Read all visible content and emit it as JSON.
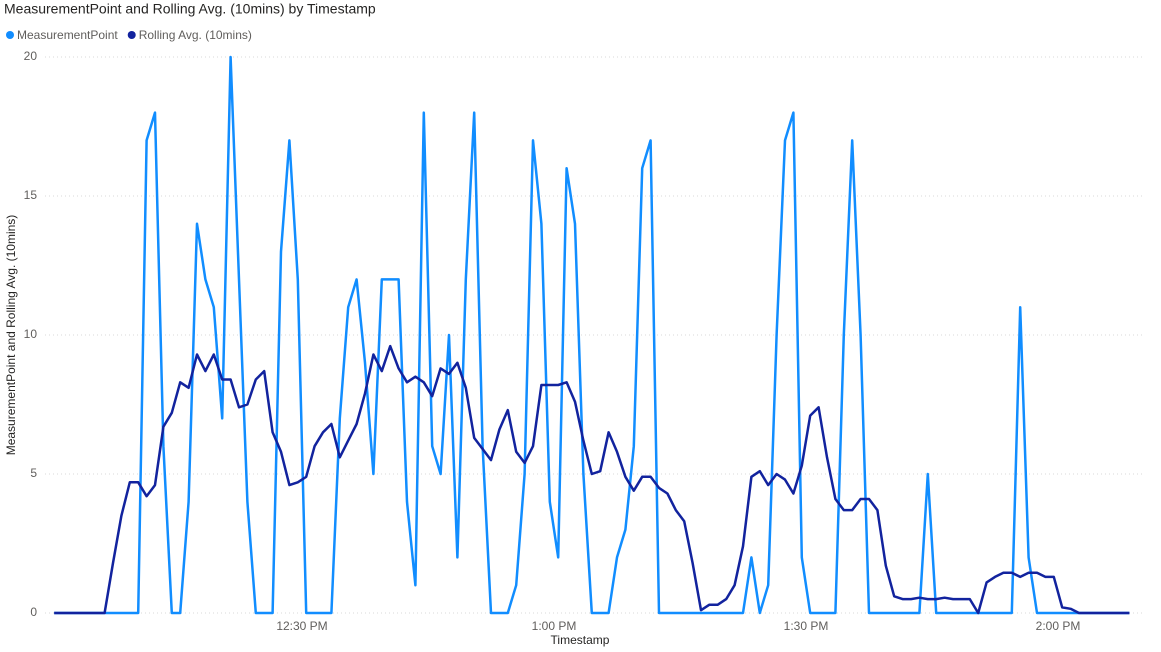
{
  "chart_data": {
    "type": "line",
    "title": "MeasurementPoint and Rolling Avg. (10mins) by Timestamp",
    "x_label": "Timestamp",
    "y_label": "MeasurementPoint and Rolling Avg. (10mins)",
    "x": [
      0.5,
      1.5,
      2.5,
      3.5,
      4.5,
      5.5,
      6.5,
      7.5,
      8.5,
      9.5,
      10.5,
      11.5,
      12.5,
      13.5,
      14.5,
      15.5,
      16.5,
      17.5,
      18.5,
      19.5,
      20.5,
      21.5,
      22.5,
      23.5,
      24.5,
      25.5,
      26.5,
      27.5,
      28.5,
      29.5,
      30.5,
      31.5,
      32.5,
      33.5,
      34.5,
      35.5,
      36.5,
      37.5,
      38.5,
      39.5,
      40.5,
      41.5,
      42.5,
      43.5,
      44.5,
      45.5,
      46.5,
      47.5,
      48.5,
      49.5,
      50.5,
      51.5,
      52.5,
      53.5,
      54.5,
      55.5,
      56.5,
      57.5,
      58.5,
      59.5,
      60.5,
      61.5,
      62.5,
      63.5,
      64.5,
      65.5,
      66.5,
      67.5,
      68.5,
      69.5,
      70.5,
      71.5,
      72.5,
      73.5,
      74.5,
      75.5,
      76.5,
      77.5,
      78.5,
      79.5,
      80.5,
      81.5,
      82.5,
      83.5,
      84.5,
      85.5,
      86.5,
      87.5,
      88.5,
      89.5,
      90.5,
      91.5,
      92.5,
      93.5,
      94.5,
      95.5,
      96.5,
      97.5,
      98.5,
      99.5,
      100.5,
      101.5,
      102.5,
      103.5,
      104.5,
      105.5,
      106.5,
      107.5,
      108.5,
      109.5,
      110.5,
      111.5,
      112.5,
      113.5,
      114.5,
      115.5,
      116.5,
      117.5,
      118.5,
      119.5,
      120.5,
      121.5,
      122.5,
      123.5,
      124.5,
      125.5,
      126.5,
      127.5,
      128.5
    ],
    "series": [
      {
        "name": "MeasurementPoint",
        "color": "#118dff",
        "values": [
          0,
          0,
          0,
          0,
          0,
          0,
          0,
          0,
          0,
          0,
          0,
          17,
          18,
          6,
          0,
          0,
          4,
          14,
          12,
          11,
          7,
          20,
          12,
          4,
          0,
          0,
          0,
          13,
          17,
          12,
          0,
          0,
          0,
          0,
          7,
          11,
          12,
          9,
          5,
          12,
          12,
          12,
          4,
          1,
          18,
          6,
          5,
          10,
          2,
          12,
          18,
          6,
          0,
          0,
          0,
          1,
          5,
          17,
          14,
          4,
          2,
          16,
          14,
          5,
          0,
          0,
          0,
          2,
          3,
          6,
          16,
          17,
          0,
          0,
          0,
          0,
          0,
          0,
          0,
          0,
          0,
          0,
          0,
          2,
          0,
          1,
          10,
          17,
          18,
          2,
          0,
          0,
          0,
          0,
          10,
          17,
          10,
          0,
          0,
          0,
          0,
          0,
          0,
          0,
          5,
          0,
          0,
          0,
          0,
          0,
          0,
          0,
          0,
          0,
          0,
          11,
          2,
          0,
          0,
          0,
          0,
          0,
          0,
          0,
          0,
          0,
          0,
          0,
          0
        ]
      },
      {
        "name": "Rolling Avg. (10mins)",
        "color": "#12239e",
        "values": [
          0,
          0,
          0,
          0,
          0,
          0,
          0,
          1.8,
          3.5,
          4.7,
          4.7,
          4.2,
          4.6,
          6.7,
          7.2,
          8.3,
          8.1,
          9.3,
          8.7,
          9.3,
          8.4,
          8.4,
          7.4,
          7.5,
          8.4,
          8.7,
          6.5,
          5.8,
          4.6,
          4.7,
          4.9,
          6.0,
          6.5,
          6.8,
          5.6,
          6.2,
          6.8,
          7.9,
          9.3,
          8.7,
          9.6,
          8.8,
          8.3,
          8.5,
          8.3,
          7.8,
          8.8,
          8.6,
          9.0,
          8.1,
          6.3,
          5.9,
          5.5,
          6.6,
          7.3,
          5.8,
          5.4,
          6.0,
          8.2,
          8.2,
          8.2,
          8.3,
          7.6,
          6.2,
          5.0,
          5.1,
          6.5,
          5.8,
          4.9,
          4.4,
          4.9,
          4.9,
          4.5,
          4.3,
          3.7,
          3.3,
          1.8,
          0.1,
          0.3,
          0.3,
          0.5,
          1.0,
          2.4,
          4.9,
          5.1,
          4.6,
          5.0,
          4.8,
          4.3,
          5.3,
          7.1,
          7.4,
          5.6,
          4.1,
          3.7,
          3.7,
          4.1,
          4.1,
          3.7,
          1.7,
          0.6,
          0.5,
          0.5,
          0.55,
          0.5,
          0.5,
          0.55,
          0.5,
          0.5,
          0.5,
          0,
          1.1,
          1.3,
          1.45,
          1.45,
          1.3,
          1.45,
          1.45,
          1.3,
          1.3,
          0.2,
          0.15,
          0,
          0,
          0,
          0,
          0,
          0,
          0
        ]
      }
    ],
    "xlim": [
      0,
      130
    ],
    "xticks": [
      {
        "value": 30,
        "label": "12:30 PM"
      },
      {
        "value": 60,
        "label": "1:00 PM"
      },
      {
        "value": 90,
        "label": "1:30 PM"
      },
      {
        "value": 120,
        "label": "2:00 PM"
      }
    ],
    "ylim": [
      0,
      20
    ],
    "yticks": [
      0,
      5,
      10,
      15,
      20
    ],
    "grid": true,
    "legend": "top-left"
  }
}
